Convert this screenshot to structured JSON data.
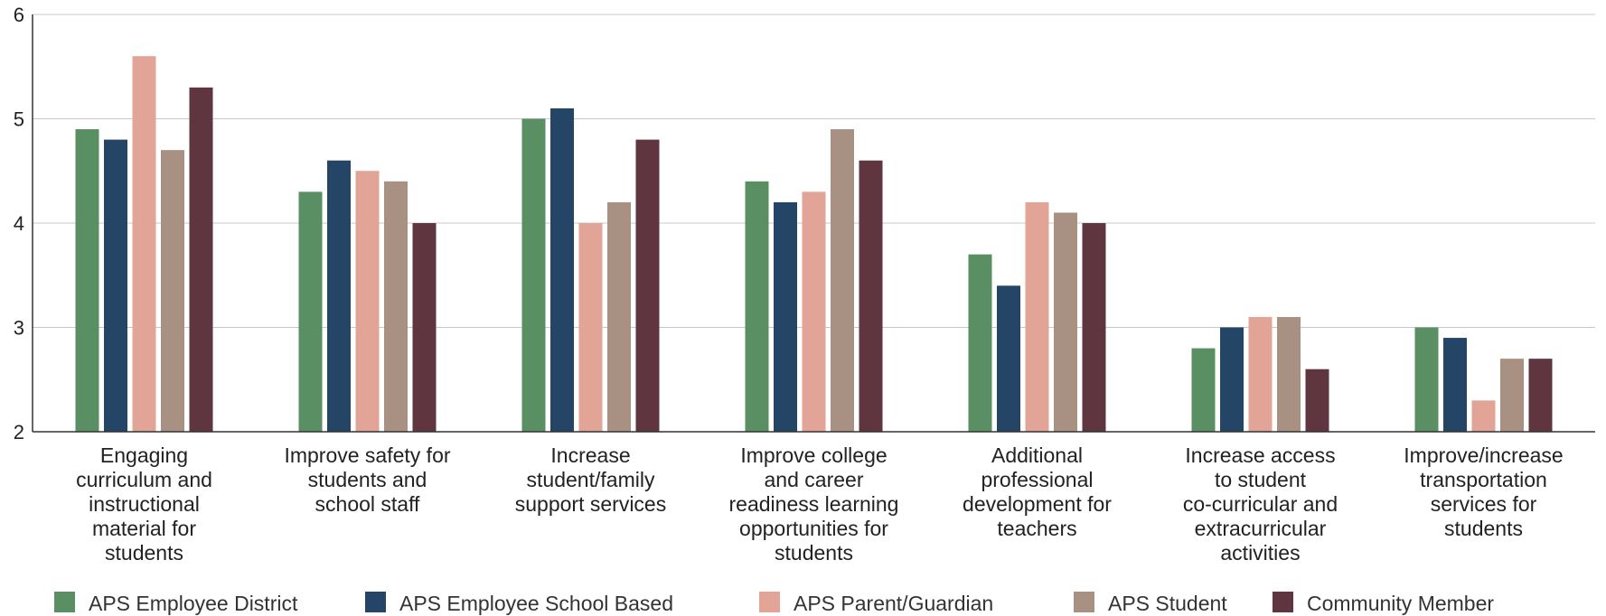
{
  "chart_data": {
    "type": "bar",
    "title": "",
    "xlabel": "",
    "ylabel": "",
    "ylim": [
      2,
      6
    ],
    "yticks": [
      2,
      3,
      4,
      5,
      6
    ],
    "grid": true,
    "legend_position": "bottom",
    "categories": [
      "Engaging curriculum and instructional material for students",
      "Improve safety for students and school staff",
      "Increase student/family support services",
      "Improve college and career readiness learning opportunities for students",
      "Additional professional development for teachers",
      "Increase access to student co-curricular and extracurricular activities",
      "Improve/increase transportation services for students"
    ],
    "category_lines": [
      [
        "Engaging",
        "curriculum and",
        "instructional",
        "material for",
        "students"
      ],
      [
        "Improve safety for",
        "students and",
        "school staff"
      ],
      [
        "Increase",
        "student/family",
        "support services"
      ],
      [
        "Improve college",
        "and career",
        "readiness learning",
        "opportunities for",
        "students"
      ],
      [
        "Additional",
        "professional",
        "development for",
        "teachers"
      ],
      [
        "Increase access",
        "to student",
        "co-curricular and",
        "extracurricular",
        "activities"
      ],
      [
        "Improve/increase",
        "transportation",
        "services for",
        "students"
      ]
    ],
    "series": [
      {
        "name": "APS Employee District",
        "color": "#5a8f63",
        "values": [
          4.9,
          4.3,
          5.0,
          4.4,
          3.7,
          2.8,
          3.0
        ]
      },
      {
        "name": "APS Employee School Based",
        "color": "#244566",
        "values": [
          4.8,
          4.6,
          5.1,
          4.2,
          3.4,
          3.0,
          2.9
        ]
      },
      {
        "name": "APS Parent/Guardian",
        "color": "#e2a497",
        "values": [
          5.6,
          4.5,
          4.0,
          4.3,
          4.2,
          3.1,
          2.3
        ]
      },
      {
        "name": "APS Student",
        "color": "#a89082",
        "values": [
          4.7,
          4.4,
          4.2,
          4.9,
          4.1,
          3.1,
          2.7
        ]
      },
      {
        "name": "Community Member",
        "color": "#5f3540",
        "values": [
          5.3,
          4.0,
          4.8,
          4.6,
          4.0,
          2.6,
          2.7
        ]
      }
    ]
  }
}
